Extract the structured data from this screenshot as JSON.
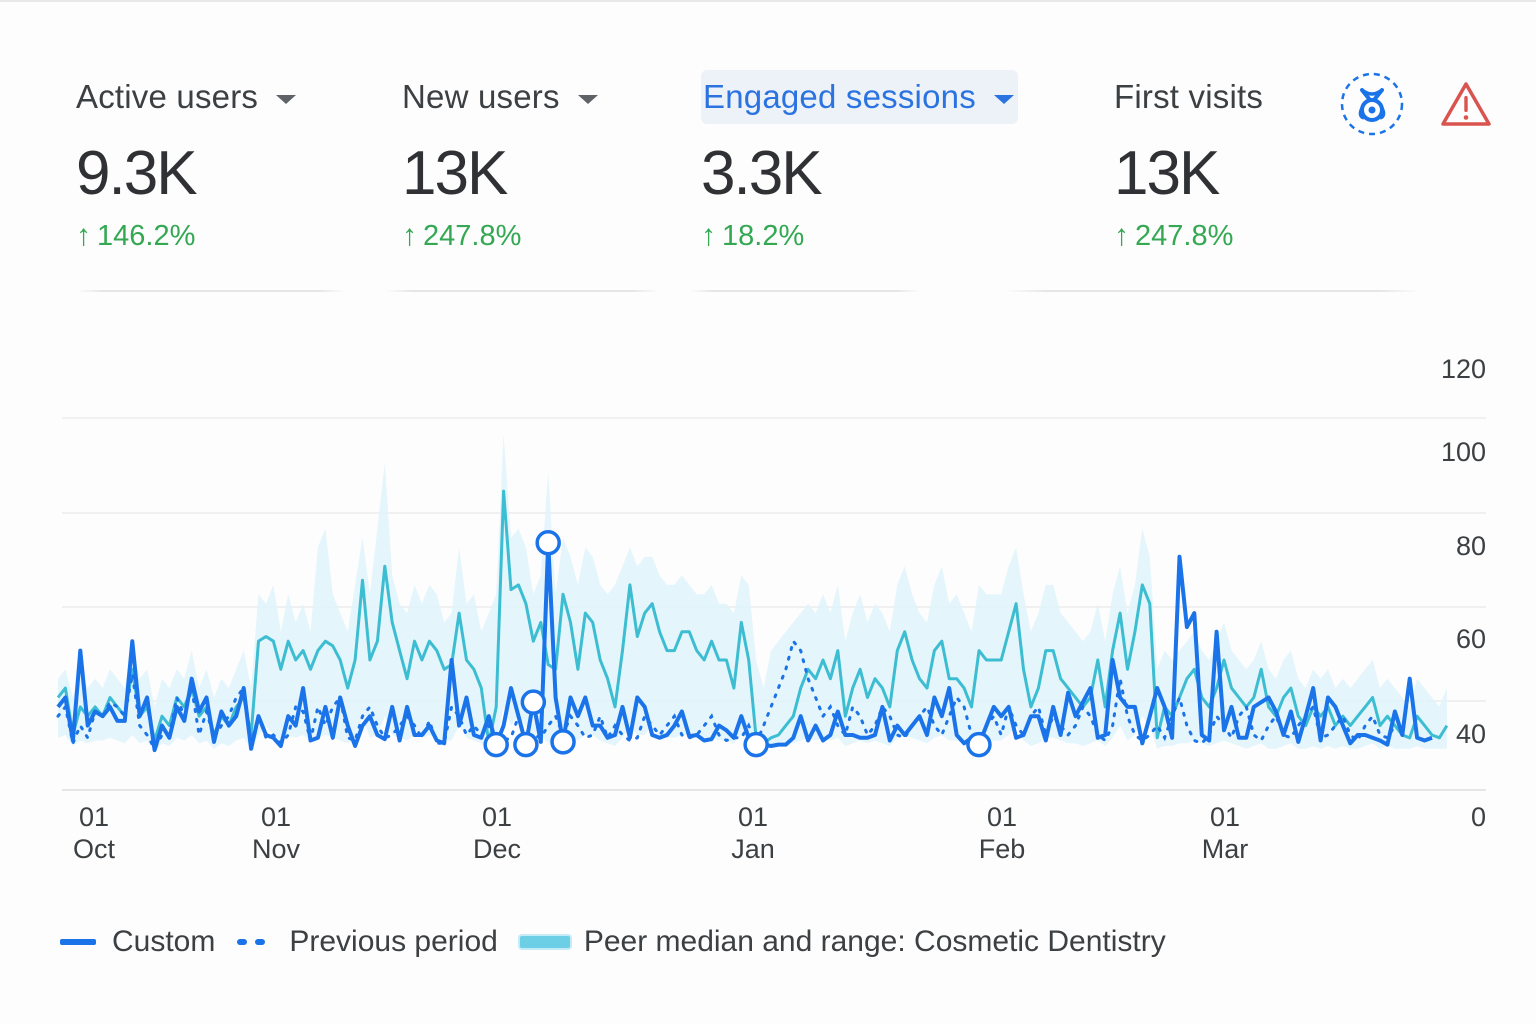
{
  "metrics": [
    {
      "label": "Active users",
      "value": "9.3K",
      "delta": "146.2%",
      "direction": "up",
      "has_dropdown": true,
      "selected": false
    },
    {
      "label": "New users",
      "value": "13K",
      "delta": "247.8%",
      "direction": "up",
      "has_dropdown": true,
      "selected": false
    },
    {
      "label": "Engaged sessions",
      "value": "3.3K",
      "delta": "18.2%",
      "direction": "up",
      "has_dropdown": true,
      "selected": true
    },
    {
      "label": "First visits",
      "value": "13K",
      "delta": "247.8%",
      "direction": "up",
      "has_dropdown": false,
      "selected": false
    }
  ],
  "icons": {
    "benchmark": "benchmark-badge-icon",
    "warning": "warning-triangle-icon"
  },
  "colors": {
    "primary": "#1a73e8",
    "accent_label": "#2a73e0",
    "peer_line": "#3dbdd1",
    "peer_band": "#dff3fb",
    "positive": "#34a853",
    "warning": "#d9534f"
  },
  "legend": [
    {
      "label": "Custom",
      "style": "solid"
    },
    {
      "label": "Previous period",
      "style": "dotted"
    },
    {
      "label": "Peer median and range: Cosmetic Dentistry",
      "style": "band"
    }
  ],
  "chart_data": {
    "type": "line",
    "title": "",
    "xlabel": "",
    "ylabel": "",
    "y_ticks": [
      "120",
      "100",
      "80",
      "60",
      "40",
      "0"
    ],
    "y_tick_values": [
      120,
      100,
      80,
      60,
      40,
      0
    ],
    "x_ticks": [
      {
        "day": "01",
        "month": "Oct"
      },
      {
        "day": "01",
        "month": "Nov"
      },
      {
        "day": "01",
        "month": "Dec"
      },
      {
        "day": "01",
        "month": "Jan"
      },
      {
        "day": "01",
        "month": "Feb"
      },
      {
        "day": "01",
        "month": "Mar"
      }
    ],
    "x_range": [
      "Sep 29",
      "Mar 28"
    ],
    "grid": true,
    "legend_position": "bottom-left",
    "anomaly_points_custom": [
      {
        "index": 59,
        "value": 33
      },
      {
        "index": 63,
        "value": 33
      },
      {
        "index": 64,
        "value": 47
      },
      {
        "index": 66,
        "value": 81
      },
      {
        "index": 68,
        "value": 35
      },
      {
        "index": 94,
        "value": 33
      },
      {
        "index": 124,
        "value": 33
      }
    ],
    "series": [
      {
        "name": "Custom",
        "values": [
          46,
          48,
          36,
          58,
          42,
          45,
          44,
          46,
          43,
          43,
          60,
          44,
          48,
          29,
          42,
          38,
          46,
          43,
          52,
          45,
          48,
          35,
          45,
          42,
          44,
          50,
          30,
          44,
          40,
          38,
          32,
          44,
          42,
          50,
          36,
          38,
          46,
          38,
          48,
          42,
          32,
          42,
          44,
          40,
          37,
          46,
          36,
          46,
          40,
          40,
          42,
          36,
          34,
          56,
          42,
          48,
          40,
          38,
          44,
          33,
          42,
          50,
          44,
          33,
          47,
          35,
          81,
          48,
          35,
          48,
          44,
          48,
          42,
          42,
          38,
          40,
          46,
          38,
          48,
          46,
          40,
          38,
          40,
          42,
          45,
          39,
          40,
          36,
          37,
          42,
          41,
          38,
          44,
          38,
          33,
          33,
          32,
          33,
          33,
          38,
          44,
          36,
          42,
          36,
          40,
          45,
          40,
          40,
          38,
          38,
          40,
          46,
          36,
          42,
          40,
          42,
          44,
          40,
          48,
          44,
          50,
          40,
          34,
          38,
          33,
          42,
          46,
          44,
          46,
          38,
          40,
          44,
          44,
          36,
          46,
          40,
          49,
          44,
          47,
          50,
          38,
          40,
          56,
          48,
          46,
          46,
          34,
          44,
          50,
          46,
          38,
          78,
          63,
          66,
          40,
          36,
          62,
          41,
          46,
          38,
          38,
          46,
          47,
          48,
          45,
          40,
          45,
          35,
          44,
          50,
          36,
          48,
          46,
          42,
          34,
          40,
          40,
          38,
          36,
          33,
          45,
          40,
          52,
          38,
          36,
          38
        ],
        "style": "solid"
      },
      {
        "name": "Previous period",
        "values": [
          44,
          46,
          34,
          42,
          38,
          45,
          44,
          47,
          46,
          44,
          53,
          42,
          40,
          30,
          40,
          40,
          48,
          44,
          50,
          40,
          45,
          38,
          42,
          44,
          48,
          50,
          34,
          44,
          38,
          40,
          34,
          40,
          46,
          45,
          36,
          46,
          42,
          46,
          48,
          38,
          36,
          44,
          46,
          42,
          38,
          40,
          42,
          44,
          42,
          38,
          43,
          34,
          34,
          46,
          44,
          40,
          42,
          40,
          42,
          34,
          36,
          38,
          44,
          35,
          40,
          38,
          42,
          44,
          40,
          44,
          42,
          38,
          40,
          44,
          38,
          42,
          40,
          36,
          38,
          44,
          42,
          40,
          42,
          44,
          40,
          38,
          40,
          42,
          44,
          40,
          36,
          38,
          38,
          42,
          34,
          42,
          46,
          50,
          54,
          60,
          58,
          52,
          48,
          44,
          46,
          42,
          40,
          46,
          44,
          40,
          42,
          46,
          44,
          40,
          38,
          42,
          44,
          46,
          42,
          40,
          44,
          48,
          46,
          40,
          38,
          42,
          44,
          40,
          46,
          42,
          40,
          44,
          46,
          40,
          44,
          42,
          40,
          42,
          46,
          44,
          40,
          36,
          42,
          52,
          44,
          40,
          36,
          40,
          42,
          38,
          44,
          48,
          42,
          36,
          34,
          40,
          44,
          42,
          38,
          44,
          46,
          40,
          36,
          42,
          44,
          40,
          38,
          42,
          44,
          46,
          38,
          40,
          42,
          44,
          40,
          36,
          42,
          44,
          40,
          38,
          42
        ],
        "style": "dotted"
      },
      {
        "name": "Peer median",
        "values": [
          48,
          50,
          40,
          46,
          44,
          46,
          44,
          48,
          46,
          44,
          54,
          44,
          46,
          36,
          44,
          42,
          48,
          46,
          50,
          44,
          46,
          40,
          44,
          42,
          46,
          48,
          40,
          60,
          61,
          60,
          54,
          60,
          56,
          58,
          54,
          58,
          60,
          59,
          56,
          50,
          56,
          73,
          56,
          60,
          76,
          64,
          58,
          52,
          60,
          56,
          60,
          58,
          54,
          55,
          66,
          56,
          54,
          50,
          34,
          46,
          92,
          71,
          72,
          68,
          60,
          64,
          55,
          54,
          70,
          64,
          54,
          66,
          64,
          56,
          52,
          46,
          58,
          72,
          61,
          66,
          68,
          62,
          58,
          58,
          62,
          62,
          58,
          56,
          60,
          56,
          56,
          50,
          64,
          56,
          38,
          34,
          38,
          40,
          42,
          44,
          50,
          54,
          52,
          56,
          52,
          58,
          44,
          50,
          54,
          48,
          52,
          50,
          46,
          58,
          62,
          56,
          52,
          50,
          58,
          60,
          52,
          52,
          50,
          46,
          58,
          56,
          56,
          56,
          62,
          68,
          54,
          46,
          50,
          58,
          58,
          52,
          50,
          48,
          46,
          48,
          56,
          46,
          58,
          66,
          54,
          62,
          72,
          68,
          38,
          46,
          44,
          48,
          52,
          54,
          48,
          46,
          50,
          56,
          50,
          48,
          46,
          48,
          54,
          46,
          44,
          48,
          50,
          44,
          42,
          46,
          44,
          46,
          42,
          44,
          42,
          44,
          46,
          48,
          42,
          44,
          42,
          40,
          38,
          44,
          42,
          40,
          38,
          42
        ],
        "style": "line"
      },
      {
        "name": "Peer range (upper)",
        "values": [
          52,
          54,
          48,
          54,
          50,
          52,
          50,
          54,
          52,
          50,
          60,
          52,
          54,
          46,
          52,
          50,
          54,
          52,
          58,
          50,
          54,
          48,
          52,
          50,
          54,
          58,
          50,
          70,
          68,
          72,
          62,
          70,
          64,
          68,
          62,
          80,
          84,
          70,
          66,
          62,
          72,
          82,
          70,
          84,
          98,
          74,
          68,
          66,
          72,
          68,
          72,
          70,
          64,
          66,
          80,
          68,
          70,
          62,
          66,
          70,
          104,
          82,
          84,
          80,
          70,
          74,
          96,
          70,
          82,
          78,
          72,
          80,
          78,
          72,
          70,
          72,
          76,
          80,
          76,
          78,
          78,
          74,
          72,
          72,
          74,
          72,
          70,
          70,
          72,
          68,
          68,
          66,
          74,
          72,
          56,
          50,
          58,
          60,
          62,
          64,
          66,
          68,
          66,
          70,
          66,
          72,
          60,
          66,
          70,
          64,
          68,
          66,
          62,
          72,
          76,
          70,
          66,
          64,
          72,
          76,
          68,
          70,
          66,
          62,
          72,
          70,
          70,
          70,
          76,
          80,
          70,
          62,
          66,
          72,
          72,
          66,
          64,
          62,
          60,
          62,
          68,
          60,
          70,
          76,
          66,
          72,
          84,
          78,
          54,
          58,
          56,
          58,
          60,
          62,
          58,
          56,
          60,
          64,
          58,
          56,
          54,
          56,
          60,
          54,
          52,
          56,
          58,
          52,
          50,
          54,
          52,
          54,
          50,
          52,
          50,
          52,
          54,
          56,
          50,
          52,
          50,
          48,
          46,
          52,
          50,
          48,
          46,
          50
        ],
        "style": "band"
      },
      {
        "name": "Peer range (lower)",
        "values": [
          38,
          40,
          32,
          36,
          34,
          36,
          36,
          38,
          36,
          34,
          40,
          34,
          36,
          28,
          34,
          32,
          38,
          36,
          40,
          34,
          36,
          30,
          34,
          32,
          36,
          38,
          30,
          40,
          42,
          40,
          36,
          40,
          38,
          40,
          36,
          38,
          40,
          38,
          36,
          34,
          36,
          44,
          38,
          40,
          44,
          40,
          38,
          36,
          40,
          38,
          40,
          38,
          36,
          36,
          42,
          38,
          36,
          34,
          30,
          34,
          46,
          42,
          44,
          42,
          40,
          40,
          34,
          36,
          42,
          40,
          36,
          40,
          40,
          36,
          34,
          32,
          38,
          42,
          40,
          40,
          42,
          40,
          38,
          38,
          40,
          40,
          38,
          36,
          38,
          36,
          36,
          34,
          40,
          36,
          30,
          30,
          32,
          32,
          34,
          34,
          36,
          38,
          36,
          38,
          36,
          38,
          32,
          34,
          36,
          34,
          36,
          34,
          32,
          38,
          40,
          38,
          36,
          34,
          38,
          40,
          36,
          36,
          34,
          32,
          38,
          36,
          36,
          36,
          40,
          42,
          36,
          32,
          34,
          38,
          38,
          36,
          34,
          34,
          32,
          34,
          36,
          32,
          38,
          42,
          36,
          40,
          44,
          42,
          30,
          32,
          32,
          34,
          34,
          36,
          34,
          32,
          34,
          36,
          34,
          32,
          30,
          32,
          34,
          30,
          30,
          32,
          34,
          30,
          30,
          32,
          30,
          32,
          30,
          32,
          30,
          30,
          32,
          34,
          30,
          32,
          30,
          30,
          30,
          32,
          30,
          30,
          30,
          30
        ],
        "style": "band"
      }
    ]
  }
}
